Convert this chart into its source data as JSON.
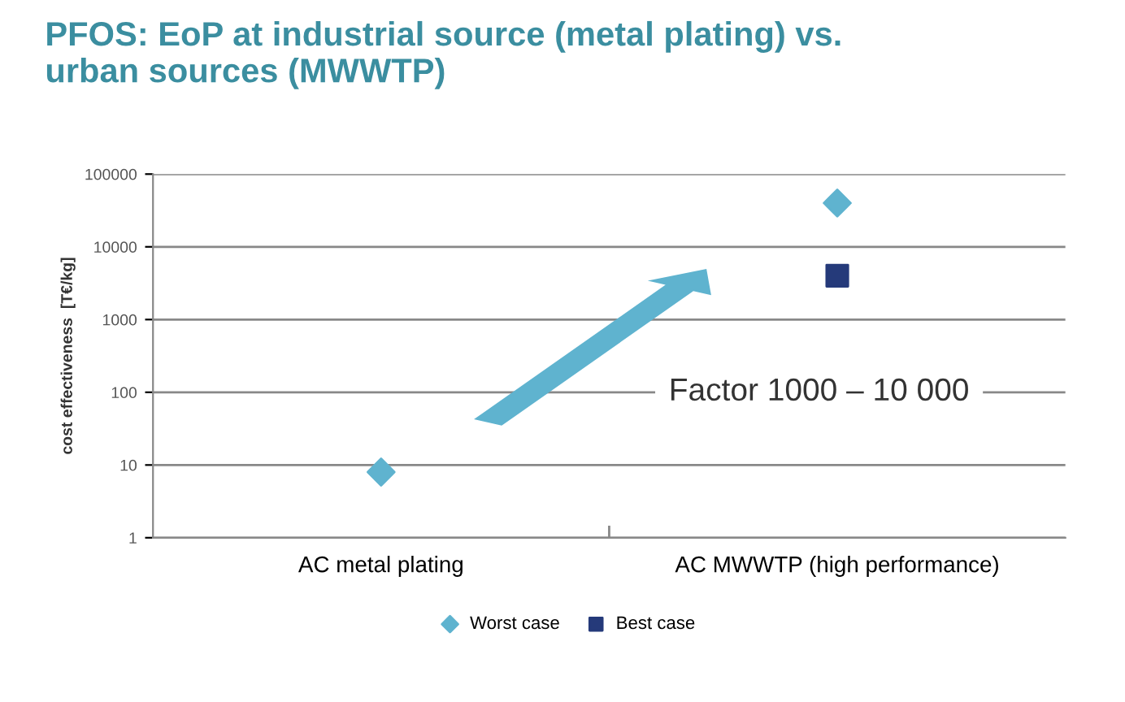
{
  "chart_data": {
    "type": "scatter",
    "title": "PFOS: EoP at industrial source (metal plating) vs.\nurban sources (MWWTP)",
    "ylabel": "cost effectiveness  [T€/kg]",
    "categories": [
      "AC metal plating",
      "AC MWWTP (high performance)"
    ],
    "series": [
      {
        "name": "Worst case",
        "color": "#5fb3cf",
        "marker": "diamond",
        "values": [
          8,
          40000
        ]
      },
      {
        "name": "Best case",
        "color": "#253a7a",
        "marker": "square",
        "values": [
          null,
          4000
        ]
      }
    ],
    "log": "y",
    "ylim": [
      1,
      100000
    ],
    "yticks": [
      1,
      10,
      100,
      1000,
      10000,
      100000
    ],
    "grid": "y",
    "legend": "bottom",
    "annotations": [
      "Factor 1000 – 10 000"
    ]
  }
}
